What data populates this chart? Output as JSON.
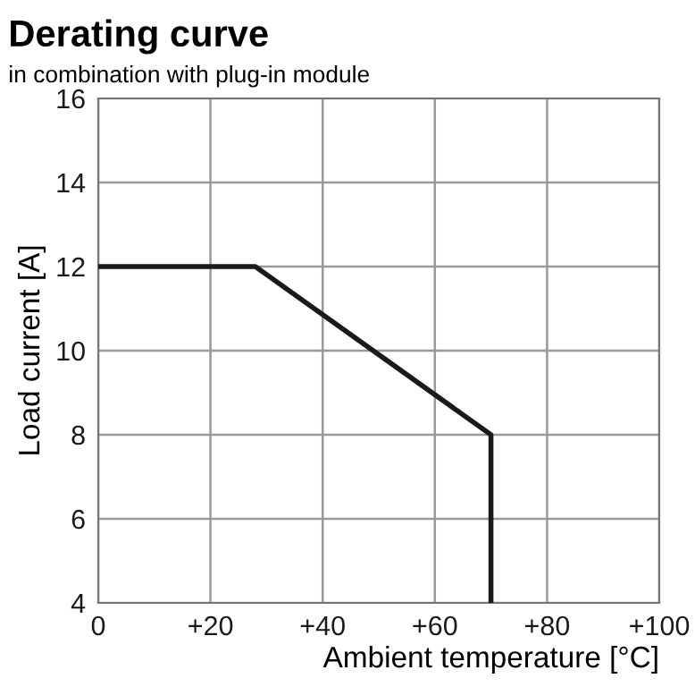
{
  "chart_data": {
    "type": "line",
    "title": "Derating curve",
    "subtitle": "in combination with plug-in module",
    "xlabel": "Ambient temperature [°C]",
    "ylabel": "Load current [A]",
    "series": [
      {
        "color": "#1a1a1a",
        "x": [
          0,
          28,
          70,
          70
        ],
        "values": [
          12,
          12,
          8,
          4
        ]
      }
    ],
    "xlim": [
      0,
      100
    ],
    "ylim": [
      4,
      16
    ],
    "xticks": [
      0,
      {
        "value": 20,
        "label": "+20"
      },
      {
        "value": 40,
        "label": "+40"
      },
      {
        "value": 60,
        "label": "+60"
      },
      {
        "value": 80,
        "label": "+80"
      },
      {
        "value": 100,
        "label": "+100"
      }
    ],
    "yticks": [
      4,
      6,
      8,
      10,
      12,
      14,
      16
    ],
    "grid": true,
    "legend": false,
    "marker": "none",
    "line_style": "solid"
  }
}
